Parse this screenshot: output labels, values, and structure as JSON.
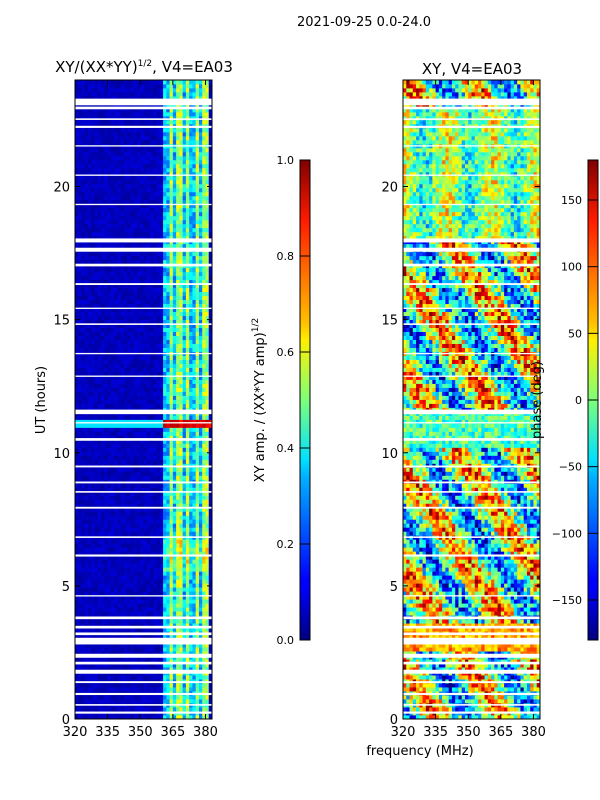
{
  "figure": {
    "suptitle": "2021-09-25 0.0-24.0",
    "shared_xlabel": "frequency (MHz)"
  },
  "chart_data": [
    {
      "type": "heatmap",
      "title_main": "XY/(XX*YY)",
      "title_sup": "1/2",
      "title_tail": ", V4=EA03",
      "xlabel": "",
      "ylabel": "UT (hours)",
      "xlim": [
        320,
        383
      ],
      "ylim": [
        0,
        24
      ],
      "x_ticks": [
        320,
        335,
        350,
        365,
        380
      ],
      "y_ticks": [
        0,
        5,
        10,
        15,
        20
      ],
      "active_band_mhz": [
        361,
        381
      ],
      "bright_channels_mhz": [
        364,
        368,
        372,
        376,
        380
      ],
      "peak_amplitude_hours": [
        11.0,
        11.3
      ],
      "colorbar": {
        "label_main": "XY amp. / (XX*YY amp)",
        "label_sup": "1/2",
        "range": [
          0.0,
          1.0
        ],
        "ticks": [
          "0.0",
          "0.2",
          "0.4",
          "0.6",
          "0.8",
          "1.0"
        ],
        "colormap": "jet"
      }
    },
    {
      "type": "heatmap",
      "title": "XY, V4=EA03",
      "xlabel": "frequency (MHz)",
      "ylabel": "",
      "xlim": [
        320,
        383
      ],
      "ylim": [
        0,
        24
      ],
      "x_ticks": [
        320,
        335,
        350,
        365,
        380
      ],
      "y_ticks": [
        0,
        5,
        10,
        15,
        20
      ],
      "colorbar": {
        "label": "phase (deg)",
        "range": [
          -180,
          180
        ],
        "ticks": [
          "−150",
          "−100",
          "−50",
          "0",
          "50",
          "100",
          "150"
        ],
        "colormap": "jet"
      }
    }
  ],
  "flagged_gaps_hours": [
    [
      0.2,
      0.28
    ],
    [
      0.5,
      0.56
    ],
    [
      0.9,
      0.98
    ],
    [
      1.35,
      1.42
    ],
    [
      1.7,
      1.85
    ],
    [
      2.05,
      2.15
    ],
    [
      2.3,
      2.45
    ],
    [
      2.8,
      3.05
    ],
    [
      3.15,
      3.25
    ],
    [
      3.4,
      3.5
    ],
    [
      3.75,
      3.85
    ],
    [
      4.6,
      4.65
    ],
    [
      6.1,
      6.18
    ],
    [
      6.8,
      6.86
    ],
    [
      7.9,
      7.97
    ],
    [
      8.5,
      8.56
    ],
    [
      8.85,
      8.92
    ],
    [
      9.45,
      9.52
    ],
    [
      10.45,
      10.55
    ],
    [
      11.1,
      11.15
    ],
    [
      11.45,
      11.62
    ],
    [
      12.85,
      12.9
    ],
    [
      13.7,
      13.75
    ],
    [
      14.8,
      14.86
    ],
    [
      15.4,
      15.45
    ],
    [
      16.3,
      16.37
    ],
    [
      17.0,
      17.1
    ],
    [
      17.55,
      17.7
    ],
    [
      17.9,
      18.05
    ],
    [
      19.3,
      19.35
    ],
    [
      20.4,
      20.45
    ],
    [
      21.5,
      21.55
    ],
    [
      22.2,
      22.28
    ],
    [
      22.5,
      22.56
    ],
    [
      22.9,
      23.0
    ],
    [
      23.05,
      23.3
    ]
  ],
  "colors": {
    "low": "#00007f",
    "background": "#ffffff",
    "axis": "#000000"
  }
}
